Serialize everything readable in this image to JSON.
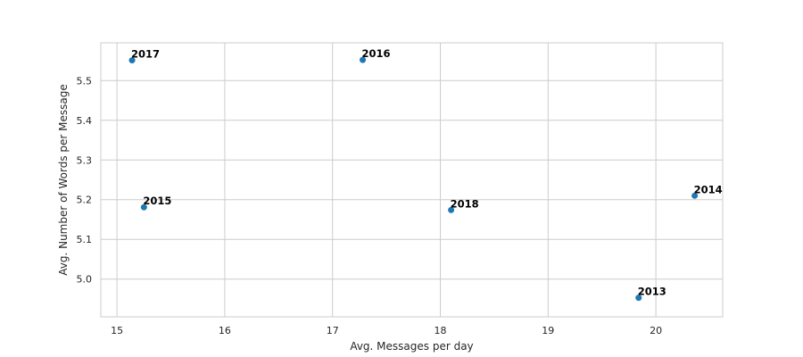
{
  "chart_data": {
    "type": "scatter",
    "title": "",
    "xlabel": "Avg. Messages per day",
    "ylabel": "Avg. Number of Words per Message",
    "xlim": [
      14.85,
      20.62
    ],
    "ylim": [
      4.905,
      5.595
    ],
    "x_ticks": [
      15,
      16,
      17,
      18,
      19,
      20
    ],
    "x_tick_labels": [
      "15",
      "16",
      "17",
      "18",
      "19",
      "20"
    ],
    "y_ticks": [
      5.0,
      5.1,
      5.2,
      5.3,
      5.4,
      5.5
    ],
    "y_tick_labels": [
      "5.0",
      "5.1",
      "5.2",
      "5.3",
      "5.4",
      "5.5"
    ],
    "grid": true,
    "points": [
      {
        "label": "2017",
        "x": 15.14,
        "y": 5.551
      },
      {
        "label": "2016",
        "x": 17.28,
        "y": 5.552
      },
      {
        "label": "2015",
        "x": 15.25,
        "y": 5.181
      },
      {
        "label": "2018",
        "x": 18.1,
        "y": 5.174
      },
      {
        "label": "2014",
        "x": 20.36,
        "y": 5.21
      },
      {
        "label": "2013",
        "x": 19.84,
        "y": 4.953
      }
    ],
    "colors": {
      "point": "#1f77b4",
      "grid": "#cccccc",
      "label": "#000000"
    }
  }
}
